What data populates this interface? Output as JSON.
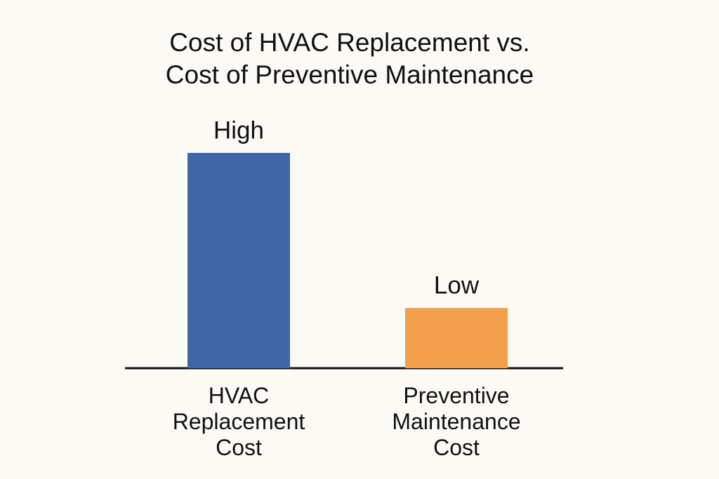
{
  "chart_data": {
    "type": "bar",
    "title": "Cost of HVAC Replacement vs. Cost of Preventive Maintenance",
    "categories": [
      "HVAC Replacement Cost",
      "Preventive Maintenance Cost"
    ],
    "values": [
      100,
      28
    ],
    "value_labels": [
      "High",
      "Low"
    ],
    "colors": [
      "#3e66a8",
      "#f2a04a"
    ]
  }
}
